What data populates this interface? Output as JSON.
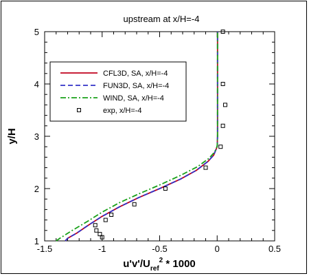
{
  "chart_data": {
    "type": "line",
    "title": "upstream at x/H=-4",
    "xlabel": "u'v'/U_ref^2 * 1000",
    "ylabel": "y/H",
    "xlim": [
      -1.5,
      0.5
    ],
    "ylim": [
      1,
      5
    ],
    "x_ticks": [
      -1.5,
      -1,
      -0.5,
      0,
      0.5
    ],
    "x_tick_labels": [
      "-1.5",
      "-1",
      "-0.5",
      "0",
      "0.5"
    ],
    "y_ticks": [
      1,
      2,
      3,
      4,
      5
    ],
    "y_tick_labels": [
      "1",
      "2",
      "3",
      "4",
      "5"
    ],
    "grid": false,
    "legend_position": "upper-left",
    "series": [
      {
        "name": "CFL3D, SA, x/H=-4",
        "style": "solid",
        "color": "#c0001c",
        "x": [
          -1.32,
          -1.3,
          -1.22,
          -1.12,
          -1.0,
          -0.85,
          -0.68,
          -0.5,
          -0.32,
          -0.18,
          -0.08,
          -0.03,
          -0.015,
          0.0,
          0.003,
          0.003,
          0.003
        ],
        "y": [
          1.0,
          1.05,
          1.15,
          1.3,
          1.47,
          1.65,
          1.83,
          2.0,
          2.18,
          2.35,
          2.52,
          2.64,
          2.72,
          2.8,
          3.0,
          4.0,
          5.0
        ]
      },
      {
        "name": "FUN3D, SA, x/H=-4",
        "style": "dashed",
        "color": "#3030c8",
        "x": [
          -1.32,
          -1.3,
          -1.22,
          -1.12,
          -1.0,
          -0.85,
          -0.68,
          -0.5,
          -0.32,
          -0.18,
          -0.08,
          -0.03,
          -0.015,
          0.0,
          0.003,
          0.003,
          0.003
        ],
        "y": [
          1.0,
          1.05,
          1.15,
          1.3,
          1.47,
          1.65,
          1.83,
          2.0,
          2.18,
          2.35,
          2.52,
          2.64,
          2.72,
          2.8,
          3.0,
          4.0,
          5.0
        ]
      },
      {
        "name": "WIND, SA, x/H=-4",
        "style": "dashdot",
        "color": "#18a018",
        "x": [
          -1.4,
          -1.36,
          -1.26,
          -1.13,
          -1.0,
          -0.85,
          -0.68,
          -0.5,
          -0.32,
          -0.17,
          -0.07,
          -0.03,
          -0.01,
          0.0,
          0.003,
          0.003,
          0.003
        ],
        "y": [
          1.0,
          1.06,
          1.2,
          1.37,
          1.55,
          1.73,
          1.9,
          2.07,
          2.25,
          2.42,
          2.58,
          2.68,
          2.75,
          2.82,
          3.0,
          4.0,
          5.0
        ]
      },
      {
        "name": "exp, x/H=-4",
        "style": "markers",
        "color": "#000000",
        "x": [
          -1.0,
          -1.02,
          -1.05,
          -1.06,
          -0.97,
          -0.92,
          -0.72,
          -0.45,
          -0.1,
          0.03,
          0.05,
          0.07,
          0.05,
          0.05
        ],
        "y": [
          1.07,
          1.13,
          1.2,
          1.3,
          1.4,
          1.5,
          1.7,
          2.0,
          2.4,
          2.8,
          3.2,
          3.6,
          4.0,
          5.0
        ]
      }
    ]
  }
}
